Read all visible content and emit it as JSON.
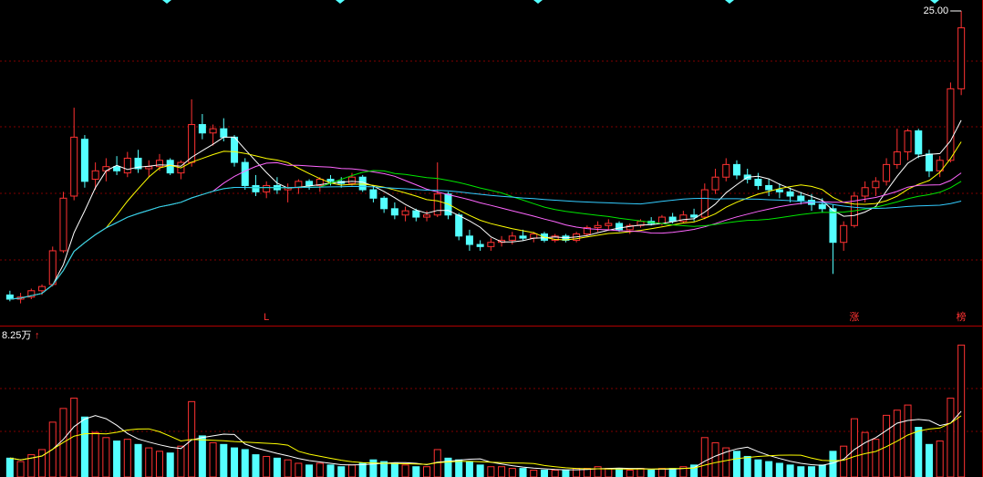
{
  "chart_data": {
    "type": "candlestick",
    "ylim": [
      10.13,
      25.52
    ],
    "high_label": {
      "value": 25.0,
      "label": "25.00"
    },
    "open": [
      11.5,
      11.3,
      11.4,
      11.7,
      12.0,
      13.6,
      16.2,
      18.9,
      17.0,
      17.4,
      17.6,
      17.3,
      18.0,
      17.5,
      17.6,
      17.9,
      17.3,
      17.8,
      19.6,
      19.2,
      19.4,
      19.0,
      17.8,
      16.7,
      16.4,
      16.7,
      16.5,
      16.6,
      16.9,
      16.7,
      17.0,
      16.9,
      16.8,
      17.1,
      16.5,
      16.1,
      15.6,
      15.3,
      15.5,
      15.2,
      15.3,
      16.3,
      15.3,
      14.3,
      13.9,
      13.8,
      14.0,
      14.1,
      14.3,
      14.2,
      14.4,
      14.1,
      14.3,
      14.1,
      14.4,
      14.7,
      14.8,
      14.9,
      14.6,
      14.8,
      15.0,
      14.9,
      15.2,
      15.0,
      15.3,
      15.2,
      16.5,
      17.1,
      17.7,
      17.2,
      17.0,
      16.7,
      16.5,
      16.4,
      16.2,
      16.0,
      15.8,
      15.6,
      14.0,
      14.8,
      16.2,
      16.6,
      16.9,
      17.7,
      18.3,
      19.3,
      18.2,
      17.4,
      17.9,
      21.3
    ],
    "high": [
      11.7,
      11.6,
      11.8,
      12.0,
      13.8,
      16.4,
      20.4,
      19.1,
      17.8,
      18.0,
      18.1,
      18.3,
      18.4,
      17.9,
      18.2,
      18.0,
      17.9,
      20.8,
      20.1,
      19.6,
      19.9,
      19.1,
      18.0,
      17.2,
      16.9,
      17.1,
      16.8,
      17.0,
      17.0,
      17.1,
      17.2,
      17.1,
      17.3,
      17.2,
      16.7,
      16.2,
      15.9,
      15.7,
      15.6,
      15.5,
      17.8,
      16.4,
      15.4,
      14.6,
      14.1,
      14.2,
      14.3,
      14.5,
      14.6,
      14.5,
      14.5,
      14.4,
      14.4,
      14.5,
      14.8,
      15.0,
      15.1,
      15.0,
      14.9,
      15.1,
      15.2,
      15.3,
      15.4,
      15.5,
      15.6,
      16.8,
      17.5,
      18.0,
      17.9,
      17.5,
      17.3,
      17.0,
      16.8,
      16.6,
      16.4,
      16.3,
      16.1,
      15.8,
      15.0,
      16.4,
      16.9,
      17.1,
      18.0,
      19.4,
      19.4,
      19.4,
      18.4,
      18.1,
      21.6,
      25.0
    ],
    "low": [
      11.2,
      11.1,
      11.3,
      11.5,
      11.9,
      13.5,
      16.0,
      16.6,
      16.5,
      16.9,
      17.2,
      17.1,
      17.3,
      17.1,
      17.4,
      17.2,
      17.0,
      17.6,
      18.9,
      18.6,
      18.8,
      17.6,
      16.5,
      16.2,
      16.1,
      16.3,
      15.9,
      16.3,
      16.5,
      16.4,
      16.7,
      16.6,
      16.7,
      16.4,
      15.9,
      15.4,
      15.1,
      15.0,
      15.0,
      15.0,
      15.2,
      15.1,
      14.1,
      13.6,
      13.6,
      13.6,
      13.8,
      13.9,
      14.1,
      14.0,
      14.0,
      14.0,
      14.0,
      14.0,
      14.3,
      14.5,
      14.6,
      14.5,
      14.4,
      14.7,
      14.8,
      14.8,
      14.9,
      14.9,
      15.0,
      15.1,
      16.3,
      16.9,
      17.0,
      16.8,
      16.5,
      16.2,
      16.1,
      15.9,
      15.8,
      15.5,
      15.4,
      12.5,
      13.6,
      14.7,
      15.9,
      16.2,
      16.7,
      17.5,
      17.9,
      18.0,
      17.1,
      17.1,
      17.8,
      21.0
    ],
    "close": [
      11.3,
      11.4,
      11.7,
      11.9,
      13.6,
      16.1,
      19.0,
      16.9,
      17.4,
      17.6,
      17.4,
      18.0,
      17.5,
      17.6,
      17.9,
      17.3,
      17.8,
      19.6,
      19.2,
      19.4,
      19.0,
      17.8,
      16.7,
      16.4,
      16.7,
      16.5,
      16.6,
      16.9,
      16.7,
      17.0,
      16.9,
      16.8,
      17.1,
      16.5,
      16.1,
      15.6,
      15.3,
      15.5,
      15.2,
      15.3,
      16.3,
      15.3,
      14.3,
      13.9,
      13.8,
      14.0,
      14.1,
      14.3,
      14.2,
      14.4,
      14.1,
      14.3,
      14.1,
      14.4,
      14.7,
      14.8,
      14.9,
      14.6,
      14.8,
      15.0,
      14.9,
      15.2,
      15.0,
      15.3,
      15.2,
      16.5,
      17.1,
      17.7,
      17.2,
      17.0,
      16.7,
      16.5,
      16.4,
      16.2,
      16.0,
      15.8,
      15.6,
      14.0,
      14.8,
      16.2,
      16.6,
      16.9,
      17.7,
      18.3,
      19.3,
      18.2,
      17.4,
      17.9,
      21.3,
      24.2
    ],
    "volume": [
      1.1,
      0.9,
      1.3,
      1.6,
      3.2,
      4.0,
      4.6,
      3.5,
      2.6,
      2.3,
      2.1,
      2.2,
      1.9,
      1.7,
      1.5,
      1.4,
      1.8,
      4.4,
      2.4,
      2.0,
      1.9,
      1.7,
      1.6,
      1.3,
      1.2,
      1.1,
      1.0,
      0.8,
      0.7,
      0.8,
      0.7,
      0.6,
      0.7,
      0.8,
      1.0,
      0.9,
      0.8,
      0.7,
      0.6,
      0.6,
      1.6,
      1.1,
      1.0,
      0.9,
      0.7,
      0.6,
      0.6,
      0.5,
      0.5,
      0.4,
      0.4,
      0.4,
      0.4,
      0.5,
      0.5,
      0.6,
      0.5,
      0.5,
      0.4,
      0.5,
      0.4,
      0.5,
      0.5,
      0.6,
      0.7,
      2.3,
      2.0,
      1.7,
      1.5,
      1.2,
      1.0,
      0.9,
      0.8,
      0.7,
      0.6,
      0.6,
      0.7,
      1.5,
      1.8,
      3.4,
      2.6,
      2.2,
      3.6,
      3.9,
      4.2,
      2.9,
      1.9,
      2.1,
      4.6,
      7.7
    ],
    "flags": [
      null,
      null,
      null,
      null,
      null,
      null,
      null,
      null,
      null,
      null,
      null,
      null,
      null,
      null,
      null,
      null,
      null,
      null,
      null,
      null,
      null,
      null,
      null,
      null,
      "L",
      null,
      null,
      null,
      null,
      null,
      null,
      null,
      null,
      null,
      null,
      null,
      null,
      null,
      null,
      null,
      null,
      null,
      null,
      null,
      null,
      null,
      null,
      null,
      null,
      null,
      null,
      null,
      null,
      null,
      null,
      null,
      null,
      null,
      null,
      null,
      null,
      null,
      null,
      null,
      null,
      null,
      null,
      null,
      null,
      null,
      null,
      null,
      null,
      null,
      null,
      null,
      null,
      null,
      null,
      "涨",
      null,
      null,
      null,
      null,
      null,
      null,
      null,
      null,
      null,
      "榜"
    ],
    "vol_ylim": [
      0,
      8.25
    ],
    "vol_yticks": [
      {
        "value": 8.25,
        "label": "8.25万"
      }
    ],
    "vol_arrow": "↑",
    "ma_periods": [
      5,
      10,
      20,
      30,
      60
    ],
    "ma_colors": [
      "#ffffff",
      "#ffff00",
      "#ff66ff",
      "#00e600",
      "#33ccff"
    ],
    "vol_ma_periods": [
      5,
      10
    ],
    "vol_ma_colors": [
      "#ffffff",
      "#ffff00"
    ],
    "up_color": "#ff3232",
    "down_color": "#54ffff"
  }
}
